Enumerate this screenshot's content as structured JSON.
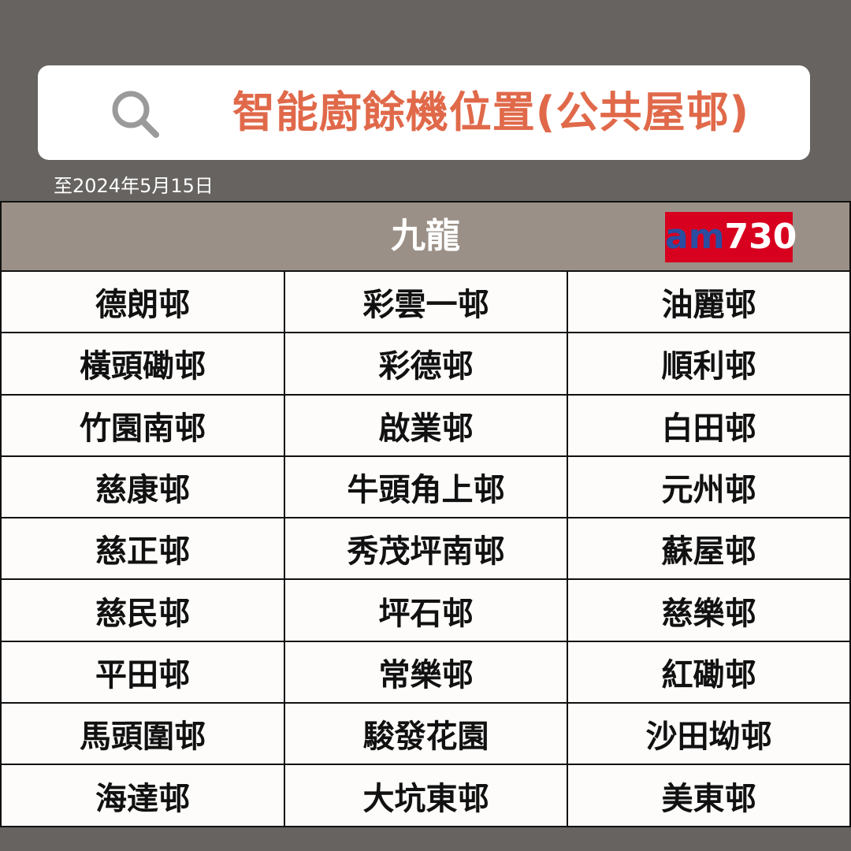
{
  "header": {
    "title": "智能廚餘機位置(公共屋邨)",
    "icon": "search-icon",
    "date": "至2024年5月15日"
  },
  "table": {
    "region": "九龍",
    "logo": {
      "prefix": "am",
      "number": "730"
    },
    "rows": [
      [
        "德朗邨",
        "彩雲一邨",
        "油麗邨"
      ],
      [
        "橫頭磡邨",
        "彩德邨",
        "順利邨"
      ],
      [
        "竹園南邨",
        "啟業邨",
        "白田邨"
      ],
      [
        "慈康邨",
        "牛頭角上邨",
        "元州邨"
      ],
      [
        "慈正邨",
        "秀茂坪南邨",
        "蘇屋邨"
      ],
      [
        "慈民邨",
        "坪石邨",
        "慈樂邨"
      ],
      [
        "平田邨",
        "常樂邨",
        "紅磡邨"
      ],
      [
        "馬頭圍邨",
        "駿發花園",
        "沙田坳邨"
      ],
      [
        "海達邨",
        "大坑東邨",
        "美東邨"
      ]
    ]
  },
  "colors": {
    "background": "#666360",
    "title": "#e0694a",
    "header": "#9b9087",
    "logo_bg": "#d8001f"
  }
}
